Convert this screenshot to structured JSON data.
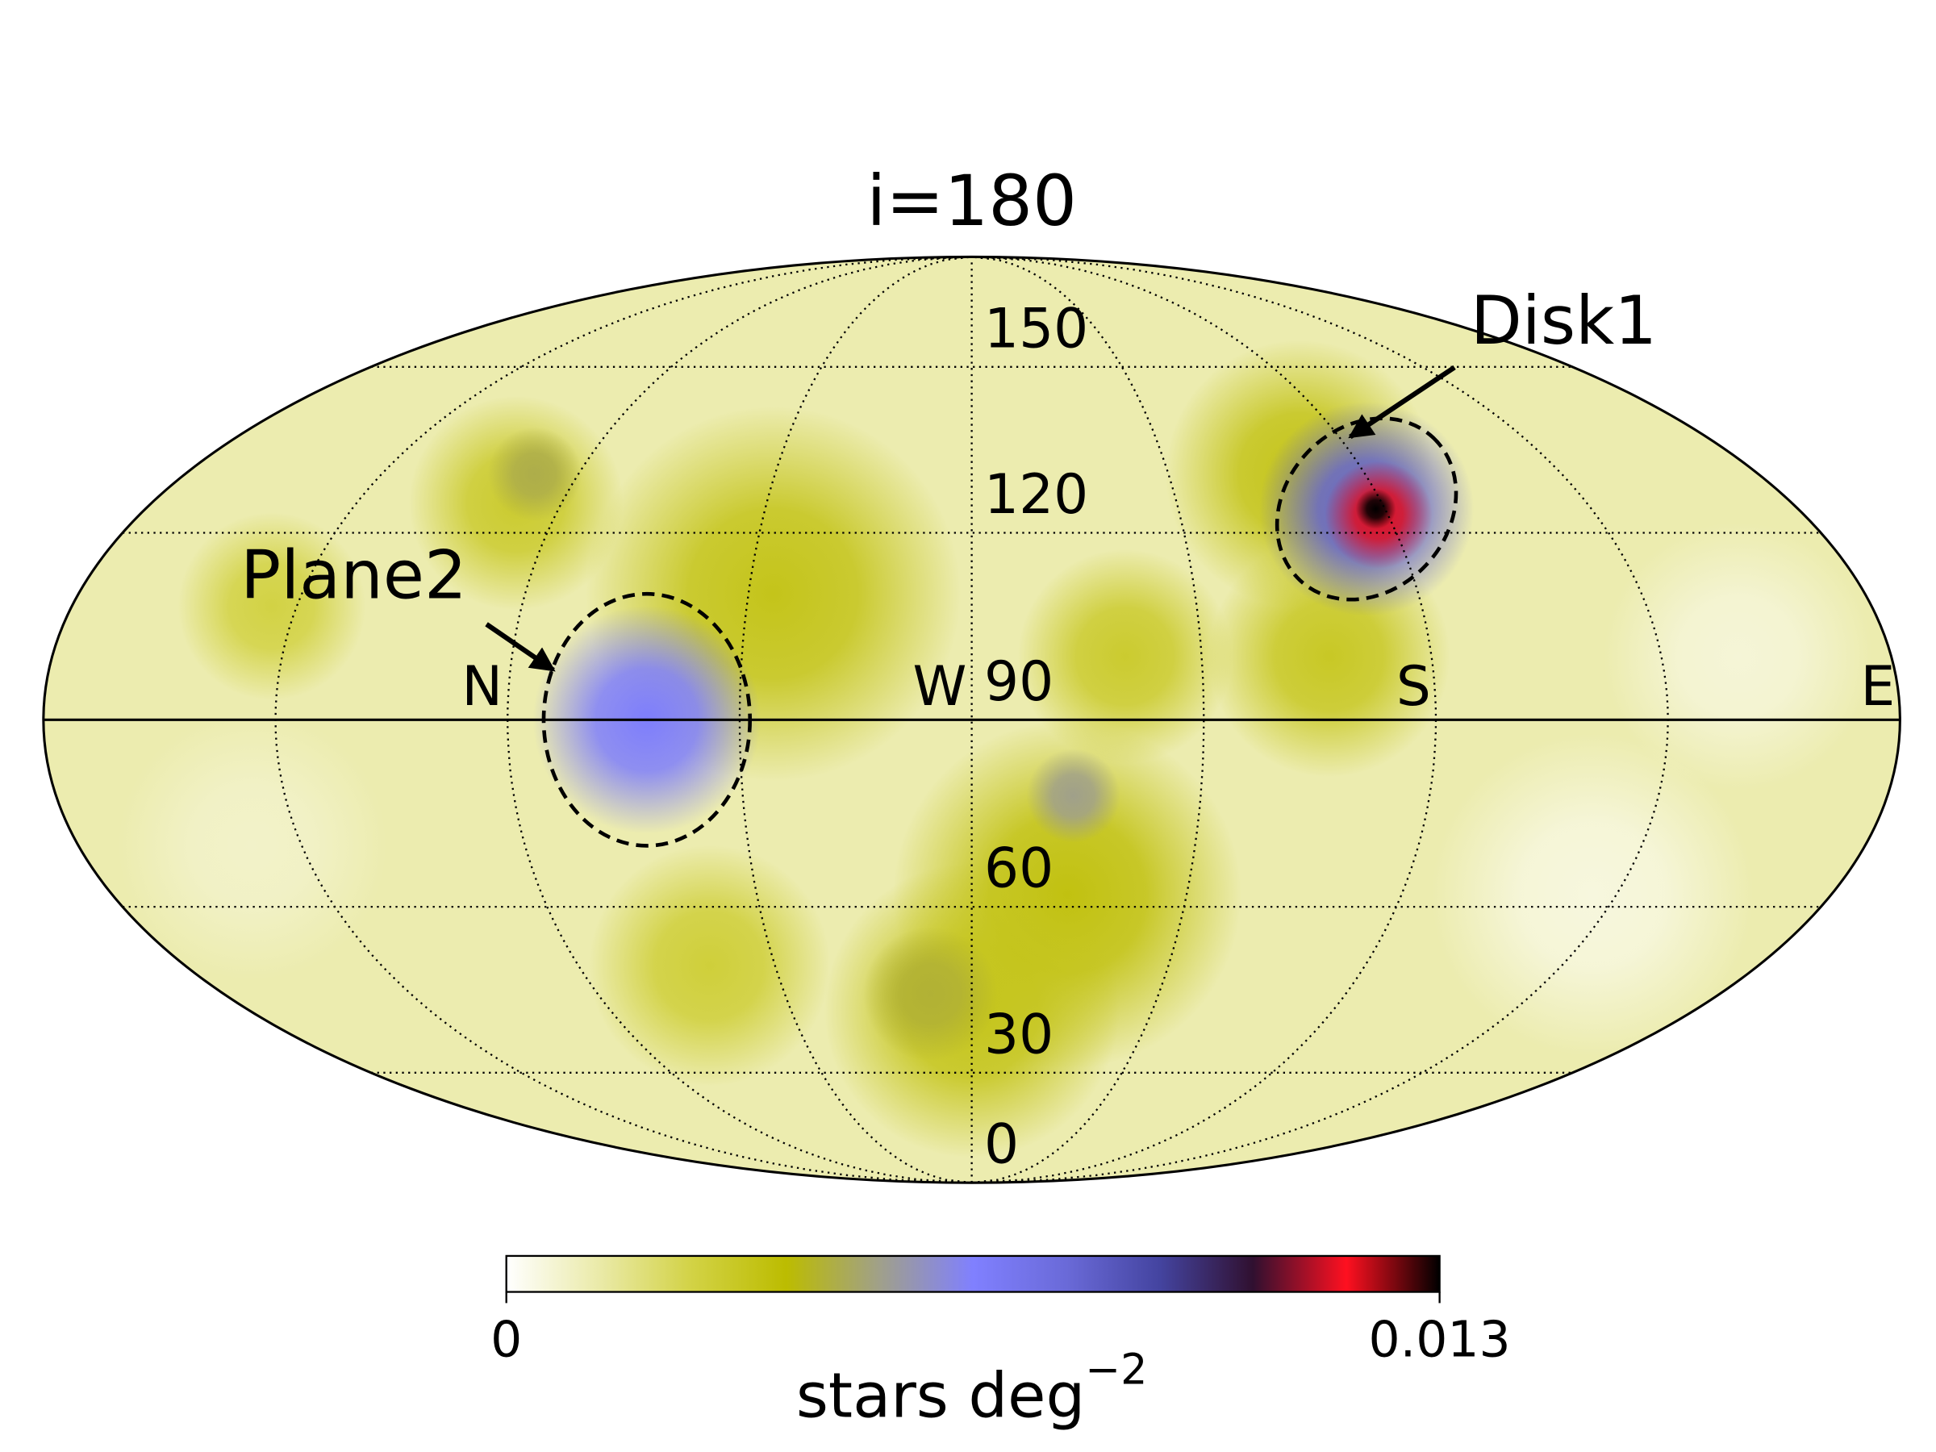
{
  "chart_data": {
    "type": "mollweide",
    "title": "i=180",
    "ylim": [
      0,
      180
    ],
    "yticks": [
      0,
      30,
      60,
      90,
      120,
      150
    ],
    "xlim": [
      -180,
      180
    ],
    "xticks": [
      {
        "value": -90,
        "label": "N"
      },
      {
        "value": 0,
        "label": "W"
      },
      {
        "value": 90,
        "label": "S"
      },
      {
        "value": 180,
        "label": "E"
      }
    ],
    "meridians": [
      -135,
      -90,
      -45,
      0,
      45,
      90,
      135
    ],
    "background_value": 0.0012,
    "blobs": [
      {
        "lon": -40,
        "colat": 110,
        "radius": 28,
        "value": 0.0034
      },
      {
        "lon": -100,
        "colat": 125,
        "radius": 16,
        "value": 0.003
      },
      {
        "lon": -140,
        "colat": 108,
        "radius": 14,
        "value": 0.0026
      },
      {
        "lon": 20,
        "colat": 62,
        "radius": 26,
        "value": 0.0036
      },
      {
        "lon": 0,
        "colat": 42,
        "radius": 22,
        "value": 0.0034
      },
      {
        "lon": 30,
        "colat": 100,
        "radius": 16,
        "value": 0.003
      },
      {
        "lon": 70,
        "colat": 100,
        "radius": 18,
        "value": 0.0032
      },
      {
        "lon": 75,
        "colat": 130,
        "radius": 20,
        "value": 0.0034
      },
      {
        "lon": -60,
        "colat": 50,
        "radius": 18,
        "value": 0.0028
      },
      {
        "lon": 130,
        "colat": 62,
        "radius": 24,
        "value": 0.0005
      },
      {
        "lon": 150,
        "colat": 100,
        "radius": 20,
        "value": 0.0006
      },
      {
        "lon": -145,
        "colat": 70,
        "radius": 20,
        "value": 0.0008
      },
      {
        "lon": 20,
        "colat": 78,
        "radius": 7,
        "value": 0.0052
      },
      {
        "lon": -100,
        "colat": 130,
        "radius": 7,
        "value": 0.0046
      },
      {
        "lon": -10,
        "colat": 45,
        "radius": 10,
        "value": 0.0044
      },
      {
        "lon": -63,
        "colat": 90,
        "radius": 17,
        "value": 0.0066
      },
      {
        "lon": 86,
        "colat": 124,
        "radius": 16,
        "value": 0.008
      },
      {
        "lon": 88,
        "colat": 123,
        "radius": 8,
        "value": 0.0115
      },
      {
        "lon": 88,
        "colat": 124,
        "radius": 3,
        "value": 0.013
      }
    ],
    "regions": [
      {
        "name": "Plane2",
        "lon": -63,
        "colat": 90,
        "radius": 20,
        "tilt": 0
      },
      {
        "name": "Disk1",
        "lon": 86,
        "colat": 124,
        "radius": 17,
        "tilt": -47
      }
    ],
    "colorbar": {
      "label": "stars deg",
      "label_exponent": "−2",
      "lim": [
        0,
        0.013
      ],
      "ticks": [
        0,
        0.013
      ],
      "colors": [
        "#ffffff",
        "#eaeaa8",
        "#d2d244",
        "#bcbc00",
        "#a0a08a",
        "#8080ff",
        "#6a6ad8",
        "#4444a0",
        "#301030",
        "#ff1020",
        "#000000"
      ]
    }
  }
}
